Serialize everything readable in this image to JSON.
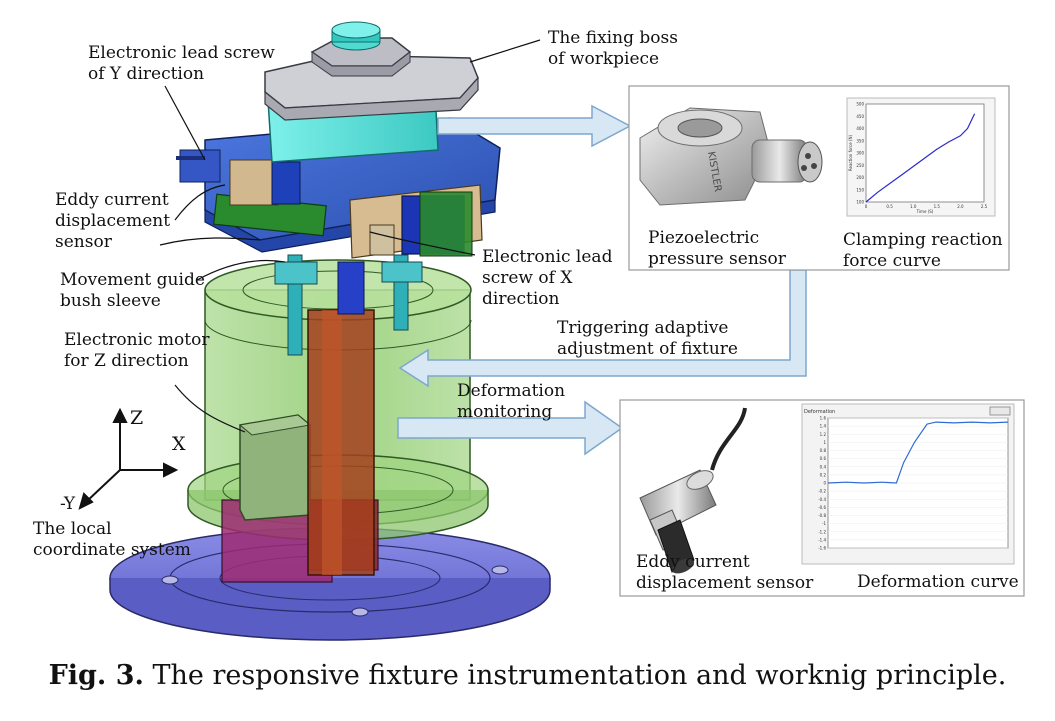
{
  "caption": {
    "prefix": "Fig. 3.",
    "text": "The responsive fixture instrumentation and worknig principle."
  },
  "labels": {
    "lead_screw_y": [
      "Electronic lead screw",
      "of Y direction"
    ],
    "fixing_boss": [
      "The fixing boss",
      "of workpiece"
    ],
    "eddy_sensor_left": [
      "Eddy current",
      "displacement",
      "sensor"
    ],
    "guide_bush": [
      "Movement guide",
      "bush sleeve"
    ],
    "lead_screw_x": [
      "Electronic lead",
      "screw of X",
      "direction"
    ],
    "motor_z": [
      "Electronic motor",
      "for Z direction"
    ],
    "triggering": [
      "Triggering adaptive",
      "adjustment of fixture"
    ],
    "deformation_monitoring": [
      "Deformation",
      "monitoring"
    ],
    "coordinate_system": [
      "The local",
      "coordinate system"
    ]
  },
  "axes": {
    "z": "Z",
    "x": "X",
    "neg_y": "-Y"
  },
  "panels": {
    "top": {
      "sensor_label": [
        "Piezoelectric",
        "pressure sensor"
      ],
      "curve_label": [
        "Clamping reaction",
        "force curve"
      ],
      "sensor_brand": "KISTLER",
      "mini_chart": {
        "type": "line",
        "ylabel": "Reaction force (N)",
        "xlabel": "Time (S)",
        "yticks": [
          "500",
          "450",
          "400",
          "350",
          "300",
          "250",
          "200",
          "150",
          "100"
        ],
        "xticks": [
          "0",
          "0.5",
          "1.0",
          "1.5",
          "2.0",
          "2.5"
        ],
        "x": [
          0,
          0.25,
          0.5,
          0.75,
          1.0,
          1.25,
          1.5,
          1.75,
          2.0,
          2.15,
          2.3
        ],
        "y": [
          100,
          140,
          175,
          210,
          245,
          280,
          315,
          345,
          370,
          400,
          460
        ],
        "ylim": [
          100,
          500
        ],
        "xlim": [
          0,
          2.5
        ]
      }
    },
    "bottom": {
      "sensor_label": [
        "Eddy current",
        "displacement sensor"
      ],
      "curve_label": "Deformation curve",
      "mini_chart": {
        "type": "line",
        "title": "Deformation",
        "yticks": [
          "1.6",
          "1.4",
          "1.2",
          "1",
          "0.8",
          "0.6",
          "0.4",
          "0.2",
          "0",
          "-0.2",
          "-0.4",
          "-0.6",
          "-0.8",
          "-1",
          "-1.2",
          "-1.4",
          "-1.6"
        ],
        "x": [
          0,
          10,
          20,
          30,
          38,
          42,
          48,
          55,
          60,
          70,
          80,
          90,
          100
        ],
        "y": [
          0,
          0.02,
          0,
          0.02,
          0,
          0.5,
          1.0,
          1.45,
          1.5,
          1.48,
          1.5,
          1.48,
          1.5
        ],
        "ylim": [
          -1.6,
          1.6
        ],
        "xlim": [
          0,
          100
        ]
      }
    }
  },
  "colors": {
    "arrow_fill": "#dbe9f5",
    "arrow_stroke": "#7fa8cf",
    "base_blue": "#6f72d6",
    "green_body": "#8fcf6b",
    "cyan_block": "#55e3dc",
    "plate_blue": "#3a62c9",
    "gray_boss": "#c9c9cf"
  }
}
